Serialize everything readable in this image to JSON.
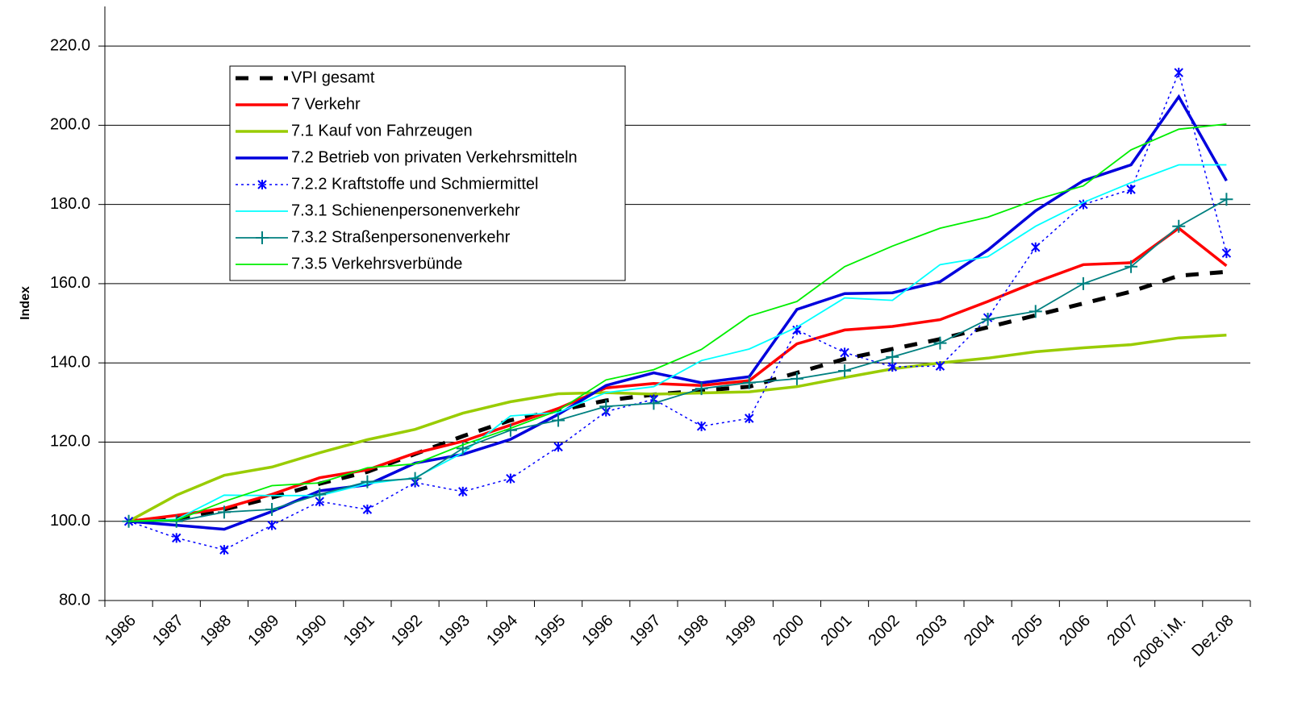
{
  "chart_data": {
    "type": "line",
    "y_label": "Index",
    "categories": [
      "1986",
      "1987",
      "1988",
      "1989",
      "1990",
      "1991",
      "1992",
      "1993",
      "1994",
      "1995",
      "1996",
      "1997",
      "1998",
      "1999",
      "2000",
      "2001",
      "2002",
      "2003",
      "2004",
      "2005",
      "2006",
      "2007",
      "2008 i.M.",
      "Dez.08"
    ],
    "ylim": [
      80,
      230
    ],
    "yticks": [
      {
        "value": 80,
        "label": "80.0"
      },
      {
        "value": 100,
        "label": "100.0"
      },
      {
        "value": 120,
        "label": "120.0"
      },
      {
        "value": 140,
        "label": "140.0"
      },
      {
        "value": 160,
        "label": "160.0"
      },
      {
        "value": 180,
        "label": "180.0"
      },
      {
        "value": 200,
        "label": "200.0"
      },
      {
        "value": 220,
        "label": "220.0"
      }
    ],
    "grid": true,
    "legend": "upper left",
    "series": [
      {
        "name": "VPI gesamt",
        "color": "#000000",
        "line_style": "dashed",
        "linewidth": 5,
        "marker": "none",
        "values": [
          100,
          100.7,
          103,
          106,
          109.5,
          112.5,
          117,
          121.5,
          125.5,
          128,
          130.5,
          132,
          133,
          134,
          137.5,
          141,
          143.5,
          146,
          149,
          152,
          155,
          158,
          162,
          163
        ]
      },
      {
        "name": "7  Verkehr",
        "color": "#ff0000",
        "line_style": "solid",
        "linewidth": 3.5,
        "marker": "none",
        "values": [
          100,
          101.5,
          103.3,
          106.8,
          111,
          113,
          117.2,
          120.2,
          124.3,
          128.5,
          133.7,
          134.8,
          134.3,
          135.5,
          144.8,
          148.3,
          149.2,
          150.9,
          155.5,
          160.4,
          164.8,
          165.3,
          174,
          164.5
        ]
      },
      {
        "name": "7.1  Kauf von Fahrzeugen",
        "color": "#99cc00",
        "line_style": "solid",
        "linewidth": 3.5,
        "marker": "none",
        "values": [
          100,
          106.6,
          111.6,
          113.7,
          117.3,
          120.6,
          123.2,
          127.3,
          130.2,
          132.2,
          132.5,
          132.1,
          132.4,
          132.7,
          134,
          136.3,
          138.5,
          140,
          141.2,
          142.8,
          143.8,
          144.6,
          146.3,
          147
        ]
      },
      {
        "name": "7.2 Betrieb von privaten Verkehrsmitteln",
        "color": "#0000dd",
        "line_style": "solid",
        "linewidth": 3.5,
        "marker": "none",
        "values": [
          100,
          99,
          98,
          102.5,
          107.7,
          109.2,
          114.7,
          116.9,
          120.7,
          127,
          134.3,
          137.5,
          135,
          136.5,
          153.5,
          157.5,
          157.7,
          160.5,
          168.5,
          178.4,
          186,
          190,
          207.2,
          186
        ]
      },
      {
        "name": "7.2.2 Kraftstoffe und Schmiermittel",
        "color": "#0000ff",
        "line_style": "dotted",
        "linewidth": 1.5,
        "marker": "star",
        "values": [
          100,
          95.8,
          92.8,
          99,
          105,
          103,
          109.8,
          107.5,
          110.8,
          118.8,
          127.7,
          130.8,
          124,
          126,
          148.3,
          142.6,
          139,
          139.2,
          151.4,
          169.2,
          180,
          183.8,
          213.3,
          167.7
        ]
      },
      {
        "name": "7.3.1 Schienenpersonenverkehr",
        "color": "#00ffff",
        "line_style": "solid",
        "linewidth": 1.8,
        "marker": "none",
        "values": [
          100,
          100.5,
          106.6,
          106.5,
          106.5,
          109.5,
          111,
          117.3,
          126.6,
          127.5,
          132.5,
          134,
          140.6,
          143.5,
          149,
          156.4,
          155.8,
          164.8,
          166.8,
          174.5,
          180.5,
          185.5,
          190,
          190
        ]
      },
      {
        "name": "7.3.2 Straßenpersonenverkehr",
        "color": "#008080",
        "line_style": "solid",
        "linewidth": 1.8,
        "marker": "plus",
        "values": [
          100,
          100,
          102.3,
          103,
          106.8,
          110,
          110.8,
          118.4,
          123,
          125.5,
          129,
          129.8,
          133.5,
          135,
          136,
          138,
          141.5,
          145,
          151,
          153,
          160,
          164.3,
          174.5,
          181.3
        ]
      },
      {
        "name": "7.3.5 Verkehrsverbünde",
        "color": "#00ee00",
        "line_style": "solid",
        "linewidth": 1.8,
        "marker": "none",
        "values": [
          100,
          100.3,
          105,
          109,
          109.7,
          113.5,
          114.5,
          119.3,
          123.5,
          128,
          135.7,
          138.3,
          143.4,
          151.8,
          155.5,
          164.3,
          169.5,
          174,
          176.8,
          181.2,
          184.7,
          193.8,
          199,
          200.3
        ]
      }
    ]
  }
}
